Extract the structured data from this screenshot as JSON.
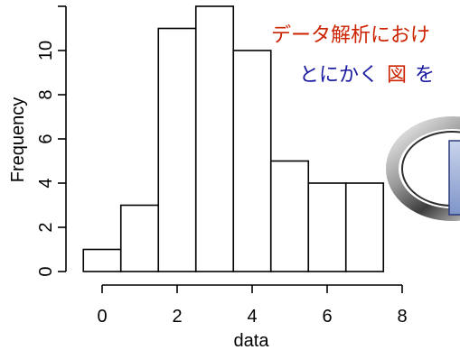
{
  "chart_data": {
    "type": "bar",
    "subtype": "histogram",
    "bins": [
      {
        "start": -0.5,
        "end": 0.5,
        "count": 1
      },
      {
        "start": 0.5,
        "end": 1.5,
        "count": 3
      },
      {
        "start": 1.5,
        "end": 2.5,
        "count": 11
      },
      {
        "start": 2.5,
        "end": 3.5,
        "count": 12
      },
      {
        "start": 3.5,
        "end": 4.5,
        "count": 10
      },
      {
        "start": 4.5,
        "end": 5.5,
        "count": 5
      },
      {
        "start": 5.5,
        "end": 6.5,
        "count": 4
      },
      {
        "start": 6.5,
        "end": 7.5,
        "count": 4
      }
    ],
    "xlabel": "data",
    "ylabel": "Frequency",
    "xticks": [
      "0",
      "2",
      "4",
      "6",
      "8"
    ],
    "yticks": [
      "0",
      "2",
      "4",
      "6",
      "8",
      "10"
    ],
    "xlim": [
      -0.5,
      9.5
    ],
    "ylim": [
      0,
      12
    ],
    "grid": false,
    "legend": "none"
  },
  "overlay": {
    "line1": "データ解析におけ",
    "line2_part1": "とにかく",
    "line2_highlight": "図",
    "line2_part3": "を",
    "colors": {
      "line1": "#cc2200",
      "line2": "#1a1aa0",
      "highlight": "#cc2200"
    },
    "graphic_icon": "metallic-ring-logo"
  }
}
